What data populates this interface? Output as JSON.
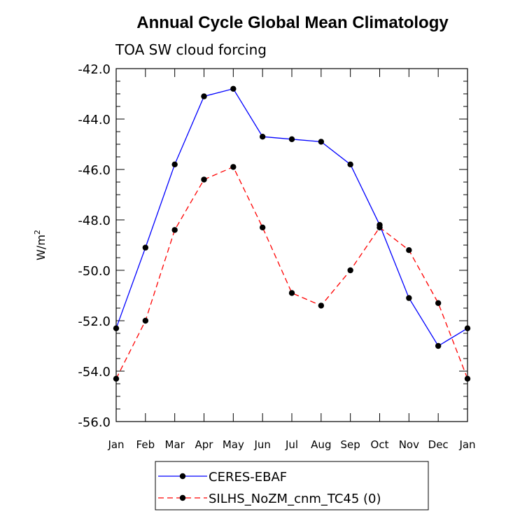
{
  "chart_data": {
    "type": "line",
    "title": "Annual Cycle Global Mean Climatology",
    "subtitle": "TOA SW cloud forcing",
    "ylabel": "W/m",
    "ylabel_sup": "2",
    "xlabel": "",
    "ylim": [
      -56.0,
      -42.0
    ],
    "yticks": [
      "-42.0",
      "-44.0",
      "-46.0",
      "-48.0",
      "-50.0",
      "-52.0",
      "-54.0",
      "-56.0"
    ],
    "ytick_values": [
      -42,
      -44,
      -46,
      -48,
      -50,
      -52,
      -54,
      -56
    ],
    "categories": [
      "Jan",
      "Feb",
      "Mar",
      "Apr",
      "May",
      "Jun",
      "Jul",
      "Aug",
      "Sep",
      "Oct",
      "Nov",
      "Dec",
      "Jan"
    ],
    "series": [
      {
        "name": "CERES-EBAF",
        "color": "#0000ff",
        "dash": "solid",
        "values": [
          -52.3,
          -49.1,
          -45.8,
          -43.1,
          -42.8,
          -44.7,
          -44.8,
          -44.9,
          -45.8,
          -48.2,
          -51.1,
          -53.0,
          -52.3
        ]
      },
      {
        "name": "SILHS_NoZM_cnm_TC45 (0)",
        "color": "#ff0000",
        "dash": "dashed",
        "values": [
          -54.3,
          -52.0,
          -48.4,
          -46.4,
          -45.9,
          -48.3,
          -50.9,
          -51.4,
          -50.0,
          -48.3,
          -49.2,
          -51.3,
          -54.3
        ]
      }
    ],
    "legend": {
      "entries": [
        "CERES-EBAF",
        "SILHS_NoZM_cnm_TC45 (0)"
      ],
      "position": "bottom-center"
    }
  }
}
